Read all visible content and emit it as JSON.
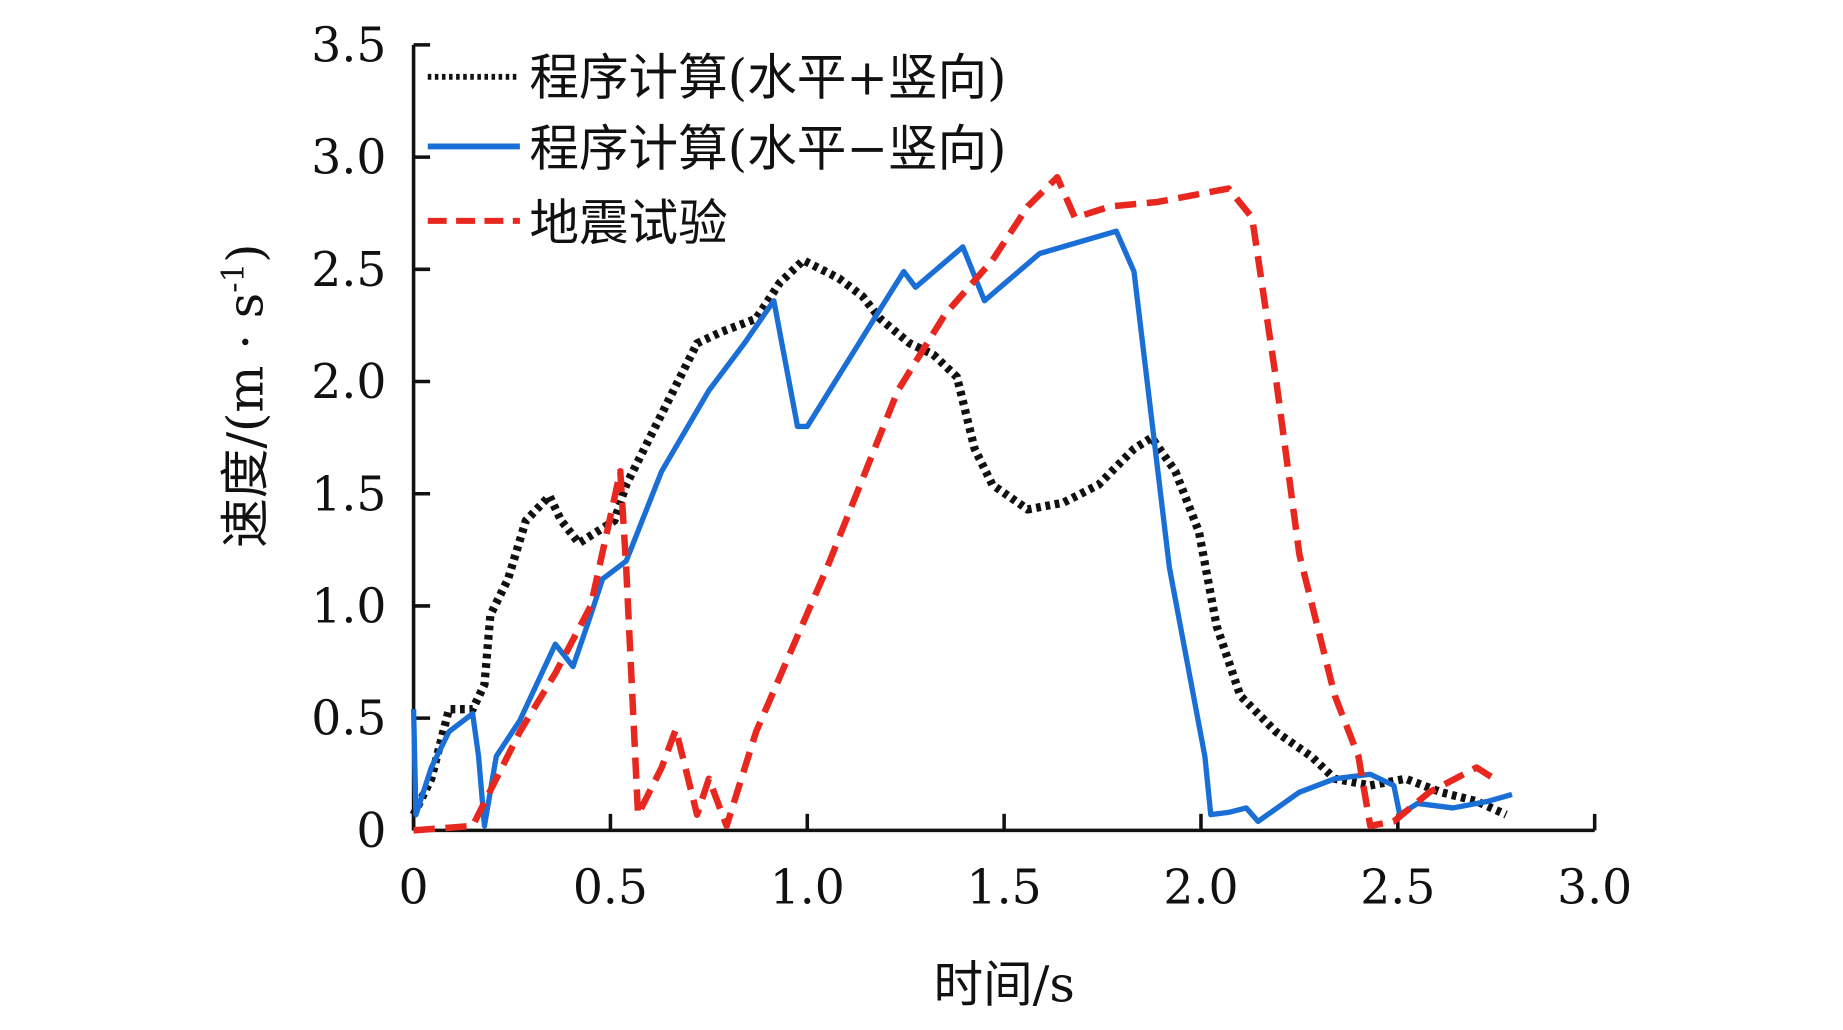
{
  "chart_data": {
    "type": "line",
    "title": "",
    "xlabel": "时间/s",
    "ylabel_parts": [
      "速度/(m · s",
      "-1",
      ")"
    ],
    "xlim": [
      0,
      3.0
    ],
    "ylim": [
      0,
      3.5
    ],
    "xticks": [
      "0",
      "0.5",
      "1.0",
      "1.5",
      "2.0",
      "2.5",
      "3.0"
    ],
    "xtick_values": [
      0,
      0.5,
      1.0,
      1.5,
      2.0,
      2.5,
      3.0
    ],
    "yticks": [
      "0",
      "0.5",
      "1.0",
      "1.5",
      "2.0",
      "2.5",
      "3.0",
      "3.5"
    ],
    "ytick_values": [
      0,
      0.5,
      1.0,
      1.5,
      2.0,
      2.5,
      3.0,
      3.5
    ],
    "grid": false,
    "legend_position": "top-left",
    "series": [
      {
        "name": "程序计算(水平+竖向)",
        "color": "#111111",
        "style": "dotted",
        "x": [
          0,
          0.045,
          0.09,
          0.15,
          0.18,
          0.195,
          0.24,
          0.285,
          0.345,
          0.375,
          0.42,
          0.465,
          0.51,
          0.54,
          0.6,
          0.66,
          0.72,
          0.78,
          0.87,
          0.93,
          0.99,
          1.08,
          1.14,
          1.185,
          1.26,
          1.32,
          1.38,
          1.425,
          1.47,
          1.56,
          1.65,
          1.74,
          1.83,
          1.875,
          1.935,
          1.995,
          2.04,
          2.1,
          2.19,
          2.28,
          2.34,
          2.43,
          2.52,
          2.61,
          2.7,
          2.775
        ],
        "y": [
          0.07,
          0.23,
          0.54,
          0.54,
          0.65,
          0.96,
          1.12,
          1.38,
          1.49,
          1.38,
          1.28,
          1.33,
          1.38,
          1.54,
          1.75,
          1.96,
          2.17,
          2.22,
          2.28,
          2.44,
          2.54,
          2.46,
          2.38,
          2.28,
          2.17,
          2.12,
          2.02,
          1.7,
          1.54,
          1.43,
          1.46,
          1.54,
          1.7,
          1.75,
          1.6,
          1.33,
          0.91,
          0.6,
          0.44,
          0.33,
          0.23,
          0.2,
          0.23,
          0.17,
          0.13,
          0.07
        ]
      },
      {
        "name": "程序计算(水平−竖向)",
        "color": "#1a6fd6",
        "style": "solid",
        "x": [
          0,
          0.006,
          0.045,
          0.09,
          0.15,
          0.165,
          0.18,
          0.21,
          0.27,
          0.36,
          0.405,
          0.45,
          0.48,
          0.54,
          0.63,
          0.75,
          0.84,
          0.915,
          0.975,
          1.0,
          1.17,
          1.245,
          1.275,
          1.395,
          1.45,
          1.59,
          1.785,
          1.83,
          1.92,
          2.01,
          2.025,
          2.07,
          2.115,
          2.145,
          2.25,
          2.34,
          2.43,
          2.49,
          2.505,
          2.55,
          2.64,
          2.73,
          2.79
        ],
        "y": [
          0.54,
          0.07,
          0.28,
          0.44,
          0.52,
          0.33,
          0.02,
          0.33,
          0.49,
          0.83,
          0.73,
          0.96,
          1.12,
          1.2,
          1.6,
          1.96,
          2.17,
          2.36,
          1.8,
          1.8,
          2.28,
          2.49,
          2.42,
          2.6,
          2.36,
          2.57,
          2.67,
          2.49,
          1.17,
          0.33,
          0.07,
          0.08,
          0.1,
          0.04,
          0.17,
          0.23,
          0.25,
          0.2,
          0.07,
          0.12,
          0.1,
          0.13,
          0.16
        ]
      },
      {
        "name": "地震试验",
        "color": "#e8281e",
        "style": "dashed",
        "x": [
          0,
          0.15,
          0.27,
          0.36,
          0.45,
          0.525,
          0.54,
          0.57,
          0.63,
          0.666,
          0.72,
          0.75,
          0.795,
          0.87,
          1.05,
          1.23,
          1.35,
          1.47,
          1.56,
          1.635,
          1.68,
          1.77,
          1.89,
          2.07,
          2.13,
          2.19,
          2.25,
          2.34,
          2.4,
          2.43,
          2.49,
          2.58,
          2.7,
          2.745
        ],
        "y": [
          0,
          0.02,
          0.44,
          0.7,
          1.0,
          1.6,
          1.17,
          0.07,
          0.28,
          0.45,
          0.07,
          0.23,
          0.02,
          0.44,
          1.17,
          1.96,
          2.3,
          2.54,
          2.78,
          2.91,
          2.73,
          2.78,
          2.8,
          2.86,
          2.73,
          2.02,
          1.23,
          0.6,
          0.33,
          0.02,
          0.04,
          0.17,
          0.28,
          0.23
        ]
      }
    ]
  }
}
